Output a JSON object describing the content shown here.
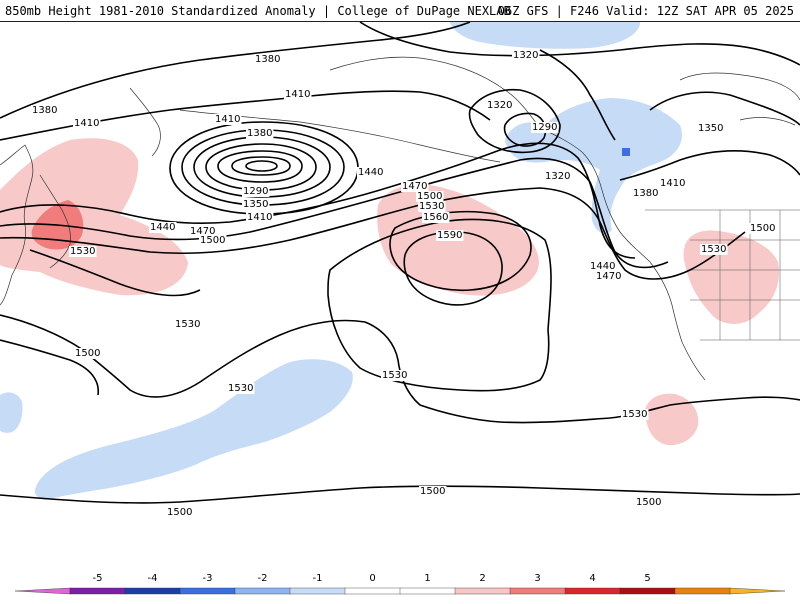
{
  "header": {
    "title_left": "850mb Height 1981-2010 Standardized Anomaly | College of DuPage NEXLAB",
    "title_right": "06Z GFS | F246 Valid: 12Z SAT APR 05 2025"
  },
  "contour_labels": [
    {
      "id": "lbl-1380-a",
      "text": "1380"
    },
    {
      "id": "lbl-1380-b",
      "text": "1380"
    },
    {
      "id": "lbl-1410-a",
      "text": "1410"
    },
    {
      "id": "lbl-1410-b",
      "text": "1410"
    },
    {
      "id": "lbl-1410-c",
      "text": "1410"
    },
    {
      "id": "lbl-1380-c",
      "text": "1380"
    },
    {
      "id": "lbl-1290-a",
      "text": "1290"
    },
    {
      "id": "lbl-1350-a",
      "text": "1350"
    },
    {
      "id": "lbl-1410-d",
      "text": "1410"
    },
    {
      "id": "lbl-1440-a",
      "text": "1440"
    },
    {
      "id": "lbl-1470-a",
      "text": "1470"
    },
    {
      "id": "lbl-1500-a",
      "text": "1500"
    },
    {
      "id": "lbl-1530-a",
      "text": "1530"
    },
    {
      "id": "lbl-1320-a",
      "text": "1320"
    },
    {
      "id": "lbl-1320-b",
      "text": "1320"
    },
    {
      "id": "lbl-1290-b",
      "text": "1290"
    },
    {
      "id": "lbl-1320-c",
      "text": "1320"
    },
    {
      "id": "lbl-1350-b",
      "text": "1350"
    },
    {
      "id": "lbl-1410-e",
      "text": "1410"
    },
    {
      "id": "lbl-1380-d",
      "text": "1380"
    },
    {
      "id": "lbl-1440-b",
      "text": "1440"
    },
    {
      "id": "lbl-1470-b",
      "text": "1470"
    },
    {
      "id": "lbl-1470-c",
      "text": "1470"
    },
    {
      "id": "lbl-1500-b",
      "text": "1500"
    },
    {
      "id": "lbl-1530-b",
      "text": "1530"
    },
    {
      "id": "lbl-1560-a",
      "text": "1560"
    },
    {
      "id": "lbl-1590-a",
      "text": "1590"
    },
    {
      "id": "lbl-1440-c",
      "text": "1440"
    },
    {
      "id": "lbl-1530-c",
      "text": "1530"
    },
    {
      "id": "lbl-1500-c",
      "text": "1500"
    },
    {
      "id": "lbl-1530-d",
      "text": "1530"
    },
    {
      "id": "lbl-1500-d",
      "text": "1500"
    },
    {
      "id": "lbl-1530-e",
      "text": "1530"
    },
    {
      "id": "lbl-1530-f",
      "text": "1530"
    },
    {
      "id": "lbl-1530-g",
      "text": "1530"
    },
    {
      "id": "lbl-1500-e",
      "text": "1500"
    },
    {
      "id": "lbl-1500-f",
      "text": "1500"
    },
    {
      "id": "lbl-1500-g",
      "text": "1500"
    }
  ],
  "colorbar": {
    "tick_labels": [
      "-5",
      "-4",
      "-3",
      "-2",
      "-1",
      "0",
      "1",
      "2",
      "3",
      "4",
      "5"
    ],
    "colors": [
      "#e066d8",
      "#7a1fa8",
      "#1b3fa8",
      "#3c6ee0",
      "#8fb5f0",
      "#c8dcf7",
      "#ffffff",
      "#ffffff",
      "#f7c6c6",
      "#f07c7c",
      "#d9262a",
      "#a80f0f",
      "#e8820f",
      "#f7b32b"
    ]
  },
  "colors": {
    "positive_light": "#f8c9c9",
    "positive_medium": "#f28080",
    "negative_light": "#c6dcf6",
    "negative_medium": "#90b6ee",
    "contour": "#000000"
  }
}
